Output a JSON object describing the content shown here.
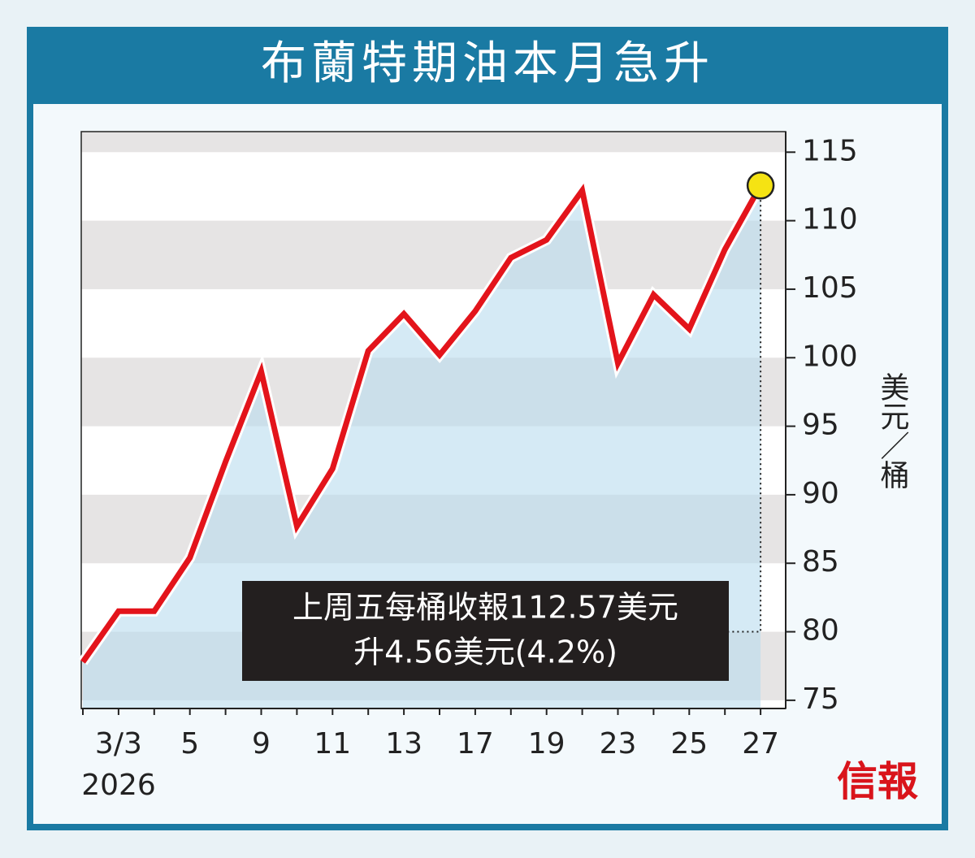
{
  "chart_data": {
    "type": "line",
    "title": "布蘭特期油本月急升",
    "ylabel": "美元／桶",
    "xlabel": "2026",
    "logo": "信報",
    "categories": [
      null,
      "3/3",
      null,
      "5",
      null,
      "9",
      null,
      "11",
      null,
      "13",
      null,
      "17",
      null,
      "19",
      null,
      "23",
      null,
      "25",
      null,
      "27"
    ],
    "series": [
      {
        "name": "布蘭特期油",
        "color": "#e3141b",
        "values": [
          77.8,
          81.5,
          81.5,
          85.4,
          92.4,
          99.0,
          87.7,
          91.9,
          100.5,
          103.2,
          100.2,
          103.4,
          107.3,
          108.6,
          112.2,
          99.6,
          104.6,
          102.1,
          107.9,
          112.57
        ]
      }
    ],
    "ylim": [
      74.4,
      116.5
    ],
    "yticks": [
      75,
      80,
      85,
      90,
      95,
      100,
      105,
      110,
      115
    ],
    "annotations": [
      "上周五每桶收報112.57美元",
      "升4.56美元(4.2%)"
    ]
  }
}
